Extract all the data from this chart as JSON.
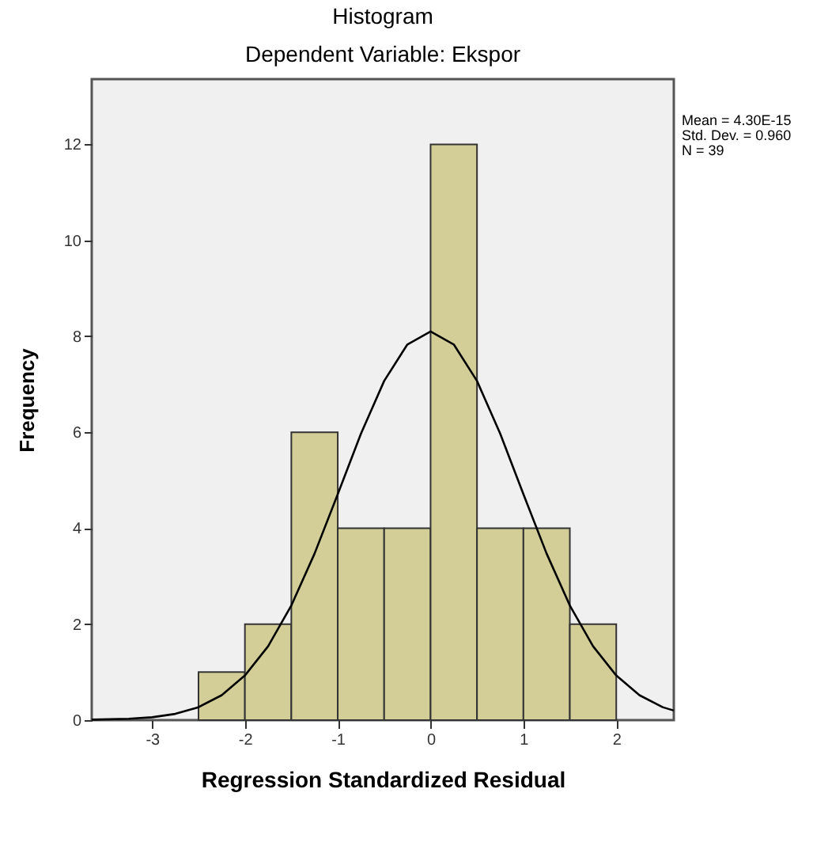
{
  "chart_data": {
    "type": "histogram",
    "title": "Histogram",
    "subtitle": "Dependent Variable: Ekspor",
    "xlabel": "Regression Standardized Residual",
    "ylabel": "Frequency",
    "bins": [
      -2.5,
      -2,
      -1.5,
      -1,
      -0.5,
      0,
      0.5,
      1,
      1.5,
      2
    ],
    "values": [
      1,
      2,
      6,
      4,
      4,
      12,
      4,
      4,
      2
    ],
    "color": "#d3ce97",
    "series": [
      {
        "type": "line",
        "color": "#000000",
        "x": [
          -3.65,
          -3.25,
          -3,
          -2.75,
          -2.5,
          -2.25,
          -2,
          -1.75,
          -1.5,
          -1.25,
          -1,
          -0.75,
          -0.5,
          -0.25,
          0,
          0.25,
          0.5,
          0.75,
          1,
          1.25,
          1.5,
          1.75,
          2,
          2.25,
          2.5,
          2.62
        ],
        "values": [
          0.01,
          0.03,
          0.06,
          0.13,
          0.27,
          0.52,
          0.93,
          1.54,
          2.39,
          3.47,
          4.71,
          5.97,
          7.07,
          7.83,
          8.1,
          7.83,
          7.07,
          5.97,
          4.71,
          3.47,
          2.39,
          1.54,
          0.93,
          0.52,
          0.27,
          0.2
        ]
      }
    ],
    "xlim": [
      -3.65,
      2.62
    ],
    "xticks": [
      -3,
      -2,
      -1,
      0,
      1,
      2
    ],
    "ylim": [
      0,
      13.36
    ],
    "yticks": [
      0,
      2,
      4,
      6,
      8,
      10,
      12
    ],
    "grid": false,
    "marker": "none",
    "annotations": [
      "Mean = 4.30E-15",
      "Std. Dev. = 0.960",
      "N = 39"
    ]
  }
}
